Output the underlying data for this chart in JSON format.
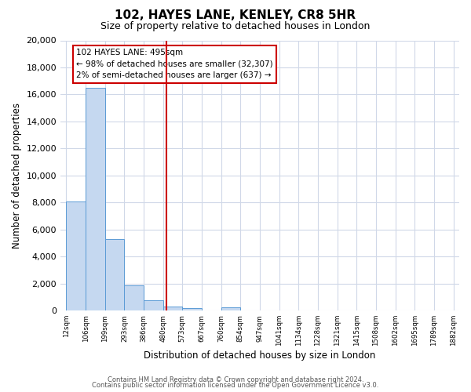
{
  "title": "102, HAYES LANE, KENLEY, CR8 5HR",
  "subtitle": "Size of property relative to detached houses in London",
  "xlabel": "Distribution of detached houses by size in London",
  "ylabel": "Number of detached properties",
  "bar_color": "#c5d8f0",
  "bar_edge_color": "#5b9bd5",
  "grid_color": "#d0d8e8",
  "background_color": "#ffffff",
  "annotation_box_color": "#ffffff",
  "annotation_box_edge": "#cc0000",
  "vline_color": "#cc0000",
  "ylim": [
    0,
    20000
  ],
  "yticks": [
    0,
    2000,
    4000,
    6000,
    8000,
    10000,
    12000,
    14000,
    16000,
    18000,
    20000
  ],
  "bin_labels": [
    "12sqm",
    "106sqm",
    "199sqm",
    "293sqm",
    "386sqm",
    "480sqm",
    "573sqm",
    "667sqm",
    "760sqm",
    "854sqm",
    "947sqm",
    "1041sqm",
    "1134sqm",
    "1228sqm",
    "1321sqm",
    "1415sqm",
    "1508sqm",
    "1602sqm",
    "1695sqm",
    "1789sqm",
    "1882sqm"
  ],
  "bar_heights": [
    8100,
    16500,
    5300,
    1850,
    780,
    320,
    210,
    0,
    220,
    0,
    0,
    0,
    0,
    0,
    0,
    0,
    0,
    0,
    0,
    0
  ],
  "vline_x": 4.42,
  "annotation_line1": "102 HAYES LANE: 495sqm",
  "annotation_line2": "← 98% of detached houses are smaller (32,307)",
  "annotation_line3": "2% of semi-detached houses are larger (637) →",
  "footer1": "Contains HM Land Registry data © Crown copyright and database right 2024.",
  "footer2": "Contains public sector information licensed under the Open Government Licence v3.0."
}
